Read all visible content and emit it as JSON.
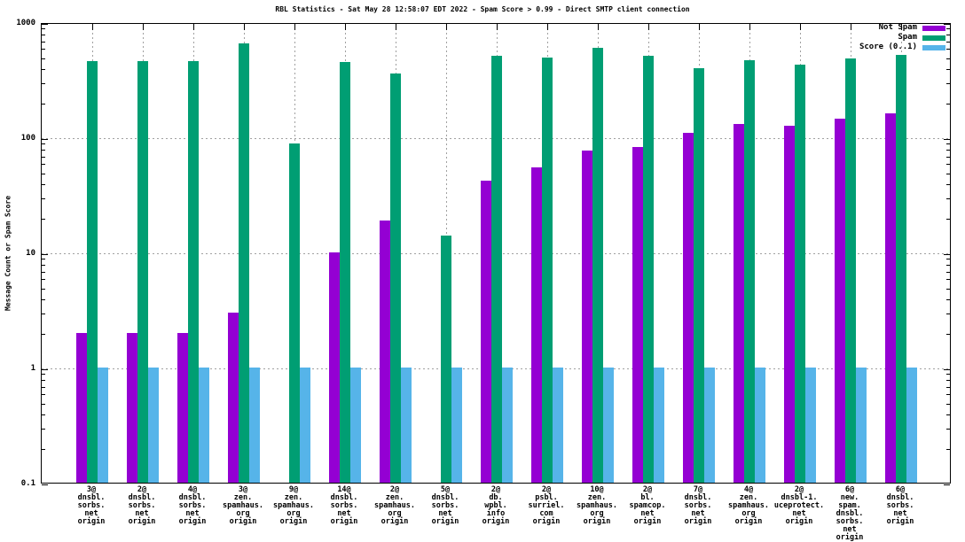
{
  "chart_data": {
    "type": "bar",
    "title": "RBL Statistics - Sat May 28 12:58:07 EDT 2022 - Spam Score > 0.99 - Direct SMTP client connection",
    "ylabel": "Message Count or Spam Score",
    "xlabel": "",
    "y_scale": "log",
    "ylim": [
      0.1,
      1000
    ],
    "y_ticks": [
      0.1,
      1,
      10,
      100,
      1000
    ],
    "y_gridlines": [
      1,
      10,
      100
    ],
    "grid": true,
    "legend_position": "top-right",
    "background_color": "#ffffff",
    "grid_color": "#a0a0a0",
    "categories": [
      [
        "3@",
        "dnsbl.",
        "sorbs.",
        "net",
        "origin"
      ],
      [
        "2@",
        "dnsbl.",
        "sorbs.",
        "net",
        "origin"
      ],
      [
        "4@",
        "dnsbl.",
        "sorbs.",
        "net",
        "origin"
      ],
      [
        "3@",
        "zen.",
        "spamhaus.",
        "org",
        "origin"
      ],
      [
        "9@",
        "zen.",
        "spamhaus.",
        "org",
        "origin"
      ],
      [
        "14@",
        "dnsbl.",
        "sorbs.",
        "net",
        "origin"
      ],
      [
        "2@",
        "zen.",
        "spamhaus.",
        "org",
        "origin"
      ],
      [
        "5@",
        "dnsbl.",
        "sorbs.",
        "net",
        "origin"
      ],
      [
        "2@",
        "db.",
        "wpbl.",
        "info",
        "origin"
      ],
      [
        "2@",
        "psbl.",
        "surriel.",
        "com",
        "origin"
      ],
      [
        "10@",
        "zen.",
        "spamhaus.",
        "org",
        "origin"
      ],
      [
        "2@",
        "bl.",
        "spamcop.",
        "net",
        "origin"
      ],
      [
        "7@",
        "dnsbl.",
        "sorbs.",
        "net",
        "origin"
      ],
      [
        "4@",
        "zen.",
        "spamhaus.",
        "org",
        "origin"
      ],
      [
        "2@",
        "dnsbl-1.",
        "uceprotect.",
        "net",
        "origin"
      ],
      [
        "6@",
        "new.",
        "spam.",
        "dnsbl.",
        "sorbs.",
        "net",
        "origin"
      ],
      [
        "6@",
        "dnsbl.",
        "sorbs.",
        "net",
        "origin"
      ]
    ],
    "series": [
      {
        "name": "Not Spam",
        "color": "#9400D3",
        "values": [
          2,
          2,
          2,
          3,
          null,
          10,
          19,
          null,
          42,
          55,
          77,
          82,
          110,
          130,
          125,
          145,
          160
        ]
      },
      {
        "name": "Spam",
        "color": "#009E73",
        "values": [
          460,
          460,
          460,
          650,
          88,
          450,
          360,
          14,
          510,
          490,
          600,
          510,
          400,
          465,
          430,
          485,
          515
        ]
      },
      {
        "name": "Score (0..1)",
        "color": "#56B4E9",
        "values": [
          1,
          1,
          1,
          1,
          1,
          1,
          1,
          1,
          1,
          1,
          1,
          1,
          1,
          1,
          1,
          1,
          1
        ]
      }
    ]
  }
}
